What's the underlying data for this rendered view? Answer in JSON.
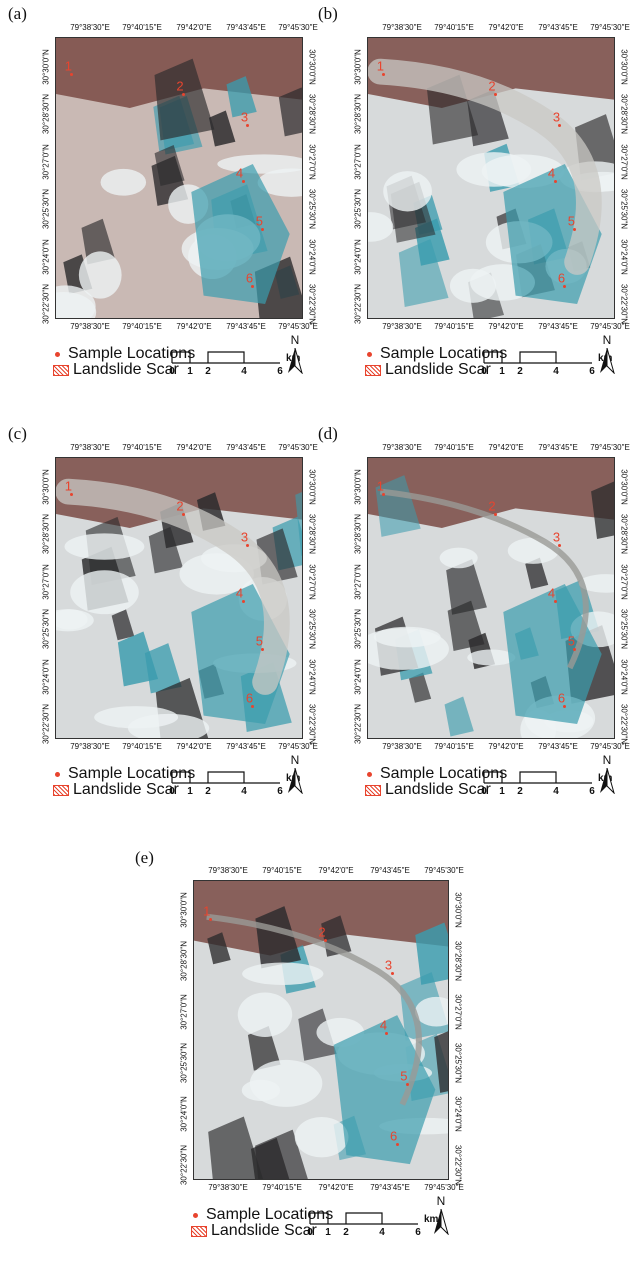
{
  "panels": [
    {
      "letter": "(a)",
      "style": "a"
    },
    {
      "letter": "(b)",
      "style": "b"
    },
    {
      "letter": "(c)",
      "style": "c"
    },
    {
      "letter": "(d)",
      "style": "d"
    },
    {
      "letter": "(e)",
      "style": "e"
    }
  ],
  "axes": {
    "top": [
      "79°38'30\"E",
      "79°40'15\"E",
      "79°42'0\"E",
      "79°43'45\"E",
      "79°45'30\"E"
    ],
    "bottom": [
      "79°38'30\"E",
      "79°40'15\"E",
      "79°42'0\"E",
      "79°43'45\"E",
      "79°45'30\"E"
    ],
    "left": [
      "30°30'0\"N",
      "30°28'30\"N",
      "30°27'0\"N",
      "30°25'30\"N",
      "30°24'0\"N",
      "30°22'30\"N"
    ],
    "right": [
      "30°30'0\"N",
      "30°28'30\"N",
      "30°27'0\"N",
      "30°25'30\"N",
      "30°24'0\"N",
      "30°22'30\"N"
    ]
  },
  "sites": [
    "1",
    "2",
    "3",
    "4",
    "5",
    "6"
  ],
  "legend": {
    "sample_locations": "Sample Locations",
    "landslide_scar": "Landslide Scar"
  },
  "scale": {
    "ticks": [
      "0",
      "1",
      "2",
      "4",
      "6"
    ],
    "unit": "km"
  },
  "north": "N",
  "colors": {
    "sample_marker": "#e8442e",
    "snow": "#eef3f4",
    "glacier_cyan": "#3a9cae",
    "rock_brown": "#7a4a44",
    "shadow": "#2b2a2c"
  }
}
